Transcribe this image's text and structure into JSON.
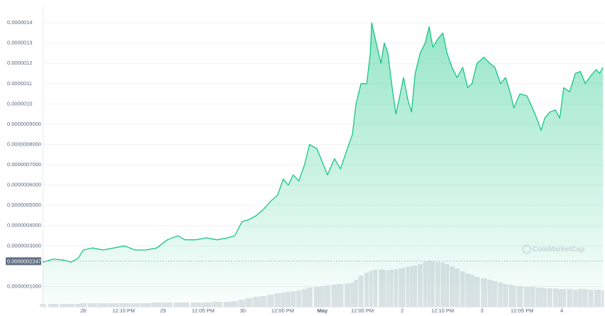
{
  "chart_data": {
    "type": "line",
    "x": [
      -12.2,
      -9.0,
      -5.8,
      -3.6,
      -1.5,
      0,
      2.8,
      6.0,
      9.2,
      12.4,
      15.6,
      18.9,
      22.1,
      25.3,
      28.5,
      30.6,
      33.9,
      37.1,
      40.3,
      43.5,
      45.6,
      47.8,
      49.9,
      52.1,
      54.2,
      56.4,
      58.5,
      60.2,
      61.7,
      63.2,
      64.9,
      66.6,
      68.1,
      70.3,
      71.8,
      73.5,
      75.6,
      77.4,
      79.5,
      81.0,
      82.1,
      83.6,
      85.3,
      86.4,
      86.8,
      87.9,
      89.6,
      90.6,
      91.7,
      92.8,
      94.1,
      95.4,
      96.4,
      97.7,
      98.8,
      99.9,
      101.4,
      102.9,
      104.1,
      105.2,
      106.7,
      108.2,
      109.5,
      111.0,
      112.5,
      114.2,
      115.7,
      117.0,
      118.5,
      120.6,
      122.4,
      123.9,
      125.6,
      127.1,
      128.6,
      129.6,
      131.4,
      133.5,
      135.2,
      136.7,
      137.8,
      138.9,
      140.4,
      142.1,
      143.4,
      144.6,
      146.4,
      148.1,
      149.6,
      151.1,
      152.8,
      154.4,
      155.4,
      156.4
    ],
    "series": [
      {
        "name": "Price",
        "color": "#16c784",
        "values": [
          2.2e-07,
          2.35e-07,
          2.3e-07,
          2.2e-07,
          2.4e-07,
          2.8e-07,
          2.9e-07,
          2.8e-07,
          2.9e-07,
          3e-07,
          2.8e-07,
          2.8e-07,
          2.9e-07,
          3.3e-07,
          3.5e-07,
          3.3e-07,
          3.3e-07,
          3.4e-07,
          3.3e-07,
          3.4e-07,
          3.5e-07,
          4.2e-07,
          4.3e-07,
          4.5e-07,
          4.8e-07,
          5.2e-07,
          5.5e-07,
          6.3e-07,
          6e-07,
          6.5e-07,
          6.2e-07,
          7e-07,
          8e-07,
          7.8e-07,
          7.2e-07,
          6.5e-07,
          7.3e-07,
          6.8e-07,
          7.8e-07,
          8.5e-07,
          1e-06,
          1.1e-06,
          1.1e-06,
          1.25e-06,
          1.4e-06,
          1.32e-06,
          1.2e-06,
          1.3e-06,
          1.25e-06,
          1.1e-06,
          9.5e-07,
          1.05e-06,
          1.13e-06,
          1.02e-06,
          9.6e-07,
          1.15e-06,
          1.25e-06,
          1.3e-06,
          1.38e-06,
          1.28e-06,
          1.32e-06,
          1.35e-06,
          1.25e-06,
          1.18e-06,
          1.13e-06,
          1.18e-06,
          1.08e-06,
          1.1e-06,
          1.2e-06,
          1.23e-06,
          1.2e-06,
          1.18e-06,
          1.1e-06,
          1.13e-06,
          1.05e-06,
          9.8e-07,
          1.05e-06,
          1.04e-06,
          9.8e-07,
          9.2e-07,
          8.7e-07,
          9.3e-07,
          9.6e-07,
          9.7e-07,
          9.3e-07,
          1.08e-06,
          1.06e-06,
          1.15e-06,
          1.16e-06,
          1.1e-06,
          1.14e-06,
          1.17e-06,
          1.15e-06,
          1.18e-06
        ]
      },
      {
        "name": "Volume",
        "color": "#dfe2e7",
        "axis": "y2",
        "values": [
          4,
          4,
          4,
          4,
          4,
          5,
          5,
          5,
          5,
          5,
          5,
          5,
          6,
          6,
          6,
          6,
          6,
          6,
          7,
          7,
          8,
          10,
          12,
          14,
          15,
          17,
          19,
          20,
          21,
          22,
          23,
          25,
          27,
          28,
          29,
          30,
          31,
          32,
          33,
          34,
          38,
          44,
          48,
          50,
          51,
          52,
          53,
          52,
          51,
          52,
          53,
          54,
          55,
          56,
          57,
          58,
          60,
          63,
          65,
          64,
          63,
          62,
          60,
          57,
          54,
          50,
          47,
          45,
          42,
          40,
          38,
          36,
          34,
          32,
          31,
          30,
          29,
          28,
          28,
          27,
          27,
          26,
          26,
          26,
          25,
          25,
          25,
          24,
          25,
          25,
          24,
          24,
          24,
          23
        ]
      }
    ],
    "xlim": [
      -12.2,
      156.6
    ],
    "xticks": [
      {
        "value": 0,
        "label": "28"
      },
      {
        "value": 12.17,
        "label": "12:10 PM"
      },
      {
        "value": 24,
        "label": "29"
      },
      {
        "value": 36.08,
        "label": "12:05 PM"
      },
      {
        "value": 48,
        "label": "30"
      },
      {
        "value": 60,
        "label": "12:00 PM"
      },
      {
        "value": 72,
        "label": "May"
      },
      {
        "value": 84,
        "label": "12:00 PM"
      },
      {
        "value": 96,
        "label": "2"
      },
      {
        "value": 108.17,
        "label": "12:10 PM"
      },
      {
        "value": 120,
        "label": "3"
      },
      {
        "value": 132.08,
        "label": "12:05 PM"
      },
      {
        "value": 144,
        "label": "4"
      }
    ],
    "ylim": [
      0,
      1.45e-06
    ],
    "yticks": [
      {
        "value": 1e-07,
        "label": "0.0000001000"
      },
      {
        "value": 3e-07,
        "label": "0.0000003000"
      },
      {
        "value": 4e-07,
        "label": "0.0000004000"
      },
      {
        "value": 5e-07,
        "label": "0.0000005000"
      },
      {
        "value": 6e-07,
        "label": "0.0000006000"
      },
      {
        "value": 7e-07,
        "label": "0.0000007000"
      },
      {
        "value": 8e-07,
        "label": "0.0000008000"
      },
      {
        "value": 9e-07,
        "label": "0.0000009000"
      },
      {
        "value": 1e-06,
        "label": "0.0000010"
      },
      {
        "value": 1.1e-06,
        "label": "0.0000011"
      },
      {
        "value": 1.2e-06,
        "label": "0.0000012"
      },
      {
        "value": 1.3e-06,
        "label": "0.0000013"
      },
      {
        "value": 1.4e-06,
        "label": "0.0000014"
      }
    ],
    "y2lim": [
      0,
      100
    ],
    "grid": true,
    "reference_price": {
      "value": 2.247e-07,
      "label": "0.0000002247"
    },
    "watermark": "CoinMarketCap"
  }
}
